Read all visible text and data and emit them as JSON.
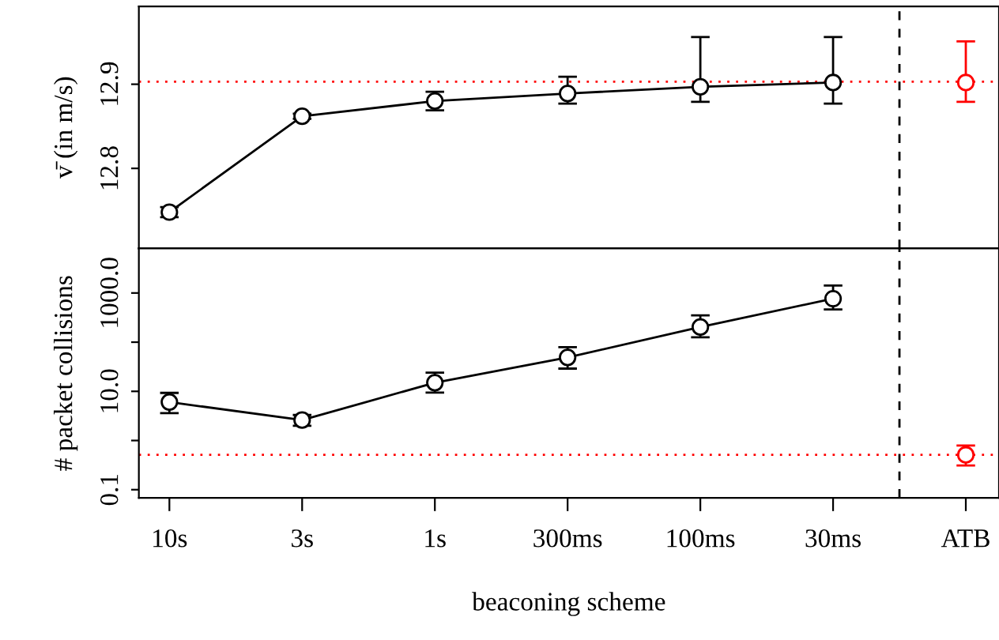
{
  "chart_data": [
    {
      "type": "line",
      "ylabel": "v̄ (in m/s)",
      "categories": [
        null,
        null,
        null,
        null,
        null,
        null,
        null
      ],
      "tick_labels": "y",
      "ylim": [
        12.705,
        12.9925
      ],
      "yticks": [
        12.8,
        12.9
      ],
      "marker": "circle",
      "line_style": "solid",
      "series": [
        {
          "type": "line",
          "color": "#000000",
          "values": [
            12.748,
            12.862,
            12.88,
            12.889,
            12.897,
            12.902,
            null
          ],
          "errors": [
            0.006,
            0.003,
            0.011,
            [
              12.877,
              12.909
            ],
            [
              12.879,
              12.956
            ],
            [
              12.877,
              12.956
            ],
            null
          ]
        },
        {
          "type": "scatter",
          "color": "#ff0000",
          "values": [
            null,
            null,
            null,
            null,
            null,
            null,
            12.902
          ],
          "errors": [
            null,
            null,
            null,
            null,
            null,
            null,
            [
              12.879,
              12.951
            ]
          ]
        }
      ],
      "ref_lines": [
        {
          "axis": "y",
          "value": 12.903,
          "color": "#ff0000",
          "line_style": "dotted"
        }
      ]
    },
    {
      "type": "line",
      "ylabel": "# packet collisions",
      "xlabel": "beaconing scheme",
      "categories": [
        "10s",
        "3s",
        "1s",
        "300ms",
        "100ms",
        "30ms",
        "ATB"
      ],
      "log": "y",
      "ylim": [
        0.068,
        8100
      ],
      "yticks": [
        {
          "value": 0.1,
          "label": "0.1"
        },
        {
          "value": 1,
          "label": null
        },
        {
          "value": 10,
          "label": "10.0"
        },
        {
          "value": 100,
          "label": null
        },
        {
          "value": 1000,
          "label": "1000.0"
        }
      ],
      "marker": "circle",
      "line_style": "solid",
      "series": [
        {
          "type": "line",
          "color": "#000000",
          "values": [
            6.05,
            2.6,
            15,
            49,
            203,
            767,
            null
          ],
          "errors": [
            [
              3.6,
              9.3
            ],
            [
              2.0,
              3.3
            ],
            [
              9.4,
              24
            ],
            [
              29,
              79
            ],
            [
              126,
              350
            ],
            [
              465,
              1420
            ],
            null
          ]
        },
        {
          "type": "scatter",
          "color": "#ff0000",
          "values": [
            null,
            null,
            null,
            null,
            null,
            null,
            0.51
          ],
          "errors": [
            null,
            null,
            null,
            null,
            null,
            null,
            [
              0.31,
              0.79
            ]
          ]
        }
      ],
      "ref_lines": [
        {
          "axis": "y",
          "value": 0.51,
          "color": "#ff0000",
          "line_style": "dotted"
        }
      ]
    }
  ]
}
